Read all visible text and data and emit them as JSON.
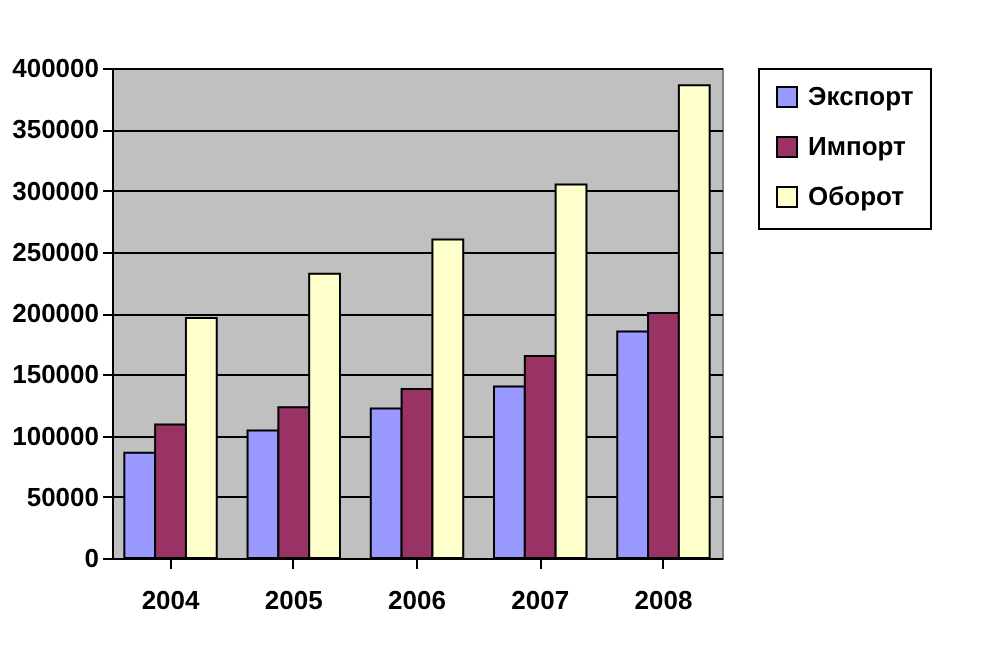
{
  "chart_data": {
    "type": "bar",
    "categories": [
      "2004",
      "2005",
      "2006",
      "2007",
      "2008"
    ],
    "series": [
      {
        "name": "Экспорт",
        "color": "#9999ff",
        "values": [
          86000,
          104000,
          122000,
          140000,
          185000
        ]
      },
      {
        "name": "Импорт",
        "color": "#993366",
        "values": [
          109000,
          123000,
          138000,
          165000,
          200000
        ]
      },
      {
        "name": "Оборот",
        "color": "#ffffcc",
        "values": [
          196000,
          232000,
          260000,
          305000,
          386000
        ]
      }
    ],
    "ylim": [
      0,
      400000
    ],
    "yticks": [
      0,
      50000,
      100000,
      150000,
      200000,
      250000,
      300000,
      350000,
      400000
    ],
    "grid": "y",
    "legend": "right"
  }
}
